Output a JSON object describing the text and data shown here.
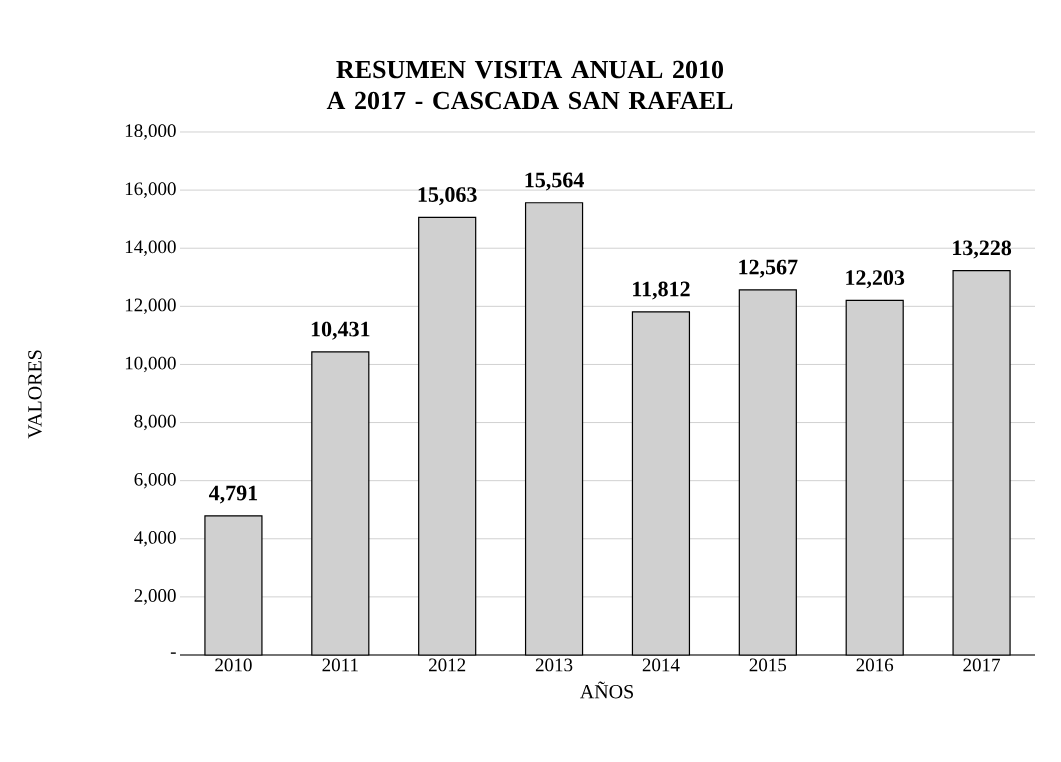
{
  "chart_data": {
    "type": "bar",
    "title": "RESUMEN VISITA ANUAL 2010 A 2017 - CASCADA SAN RAFAEL",
    "xlabel": "AÑOS",
    "ylabel": "VALORES",
    "categories": [
      "2010",
      "2011",
      "2012",
      "2013",
      "2014",
      "2015",
      "2016",
      "2017"
    ],
    "values": [
      4791,
      10431,
      15063,
      15564,
      11812,
      12567,
      12203,
      13228
    ],
    "value_labels": [
      "4,791",
      "10,431",
      "15,063",
      "15,564",
      "11,812",
      "12,567",
      "12,203",
      "13,228"
    ],
    "color": "#d0d0d0",
    "ylim": [
      0,
      18000
    ],
    "yticks": [
      {
        "value": 0,
        "label": "-"
      },
      {
        "value": 2000,
        "label": "2,000"
      },
      {
        "value": 4000,
        "label": "4,000"
      },
      {
        "value": 6000,
        "label": "6,000"
      },
      {
        "value": 8000,
        "label": "8,000"
      },
      {
        "value": 10000,
        "label": "10,000"
      },
      {
        "value": 12000,
        "label": "12,000"
      },
      {
        "value": 14000,
        "label": "14,000"
      },
      {
        "value": 16000,
        "label": "16,000"
      },
      {
        "value": 18000,
        "label": "18,000"
      }
    ],
    "grid": "y"
  }
}
